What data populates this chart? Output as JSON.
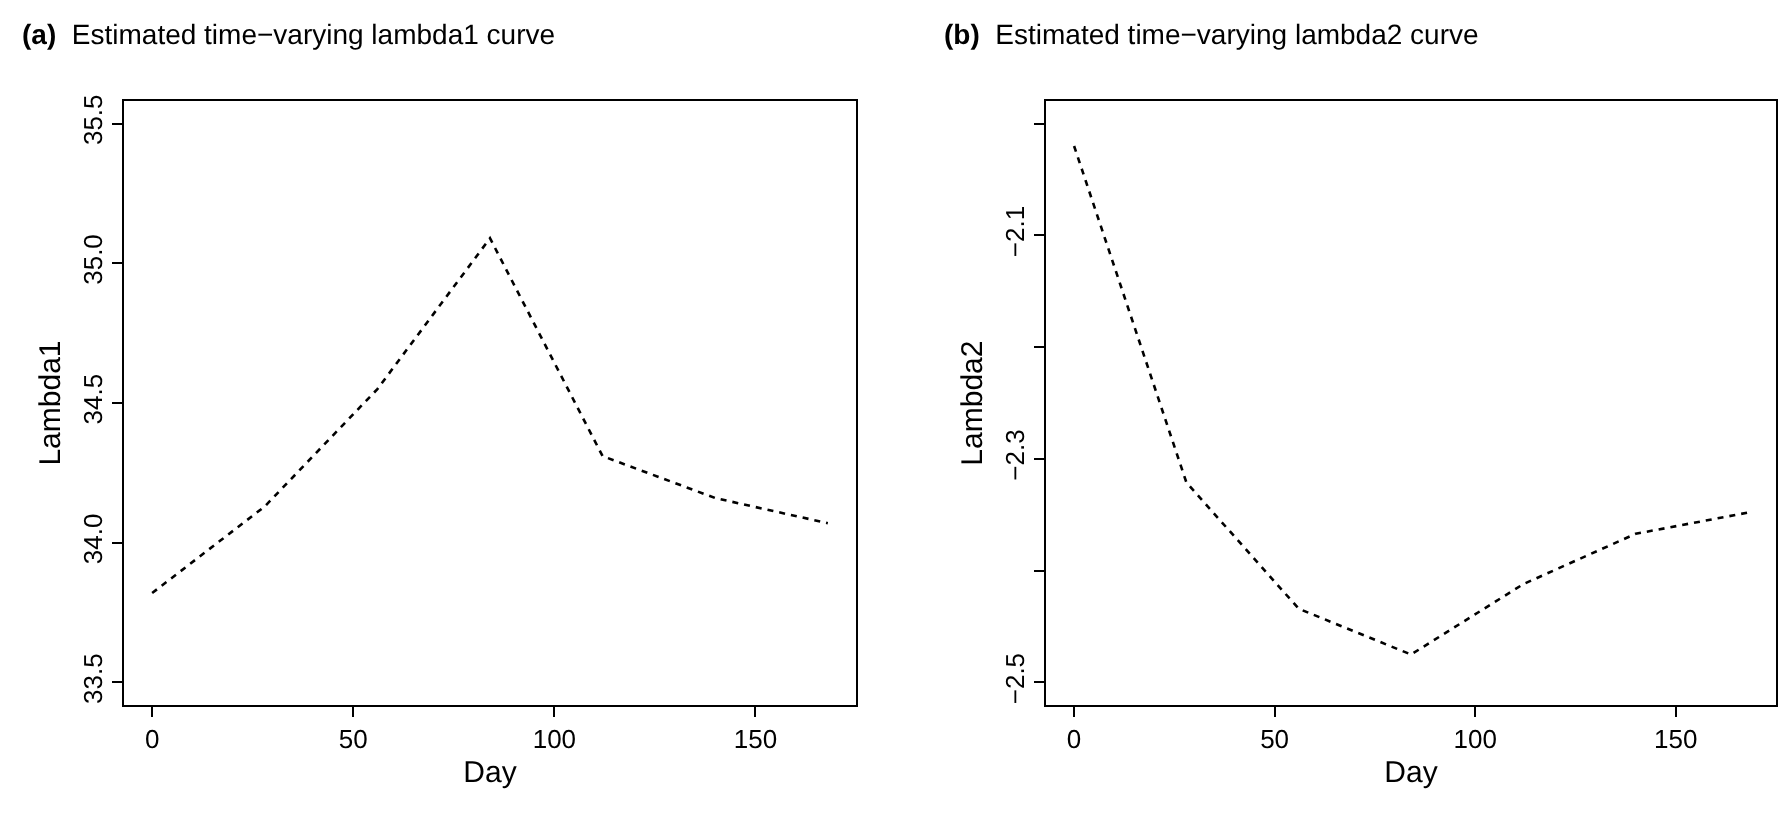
{
  "chart_data": [
    {
      "type": "line",
      "title": "(a) Estimated time−varying lambda1 curve",
      "xlabel": "Day",
      "ylabel": "Lambda1",
      "x": [
        0,
        28,
        56,
        84,
        112,
        140,
        168
      ],
      "series": [
        {
          "color": "#000000",
          "values": [
            33.82,
            34.13,
            34.55,
            35.09,
            34.31,
            34.16,
            34.07
          ]
        }
      ],
      "xlim": [
        -7,
        175
      ],
      "xticks": [
        0,
        50,
        100,
        150
      ],
      "ylim": [
        33.42,
        35.58
      ],
      "yticks": [
        {
          "value": 33.5,
          "label": "33.5"
        },
        {
          "value": 34.0,
          "label": "34.0"
        },
        {
          "value": 34.5,
          "label": "34.5"
        },
        {
          "value": 35.0,
          "label": "35.0"
        },
        {
          "value": 35.5,
          "label": "35.5"
        }
      ],
      "grid": false,
      "marker": "none",
      "line_style": "dashed"
    },
    {
      "type": "line",
      "title": "(b) Estimated time−varying lambda2 curve",
      "xlabel": "Day",
      "ylabel": "Lambda2",
      "x": [
        0,
        28,
        56,
        84,
        112,
        140,
        168
      ],
      "series": [
        {
          "color": "#000000",
          "values": [
            -2.02,
            -2.321,
            -2.434,
            -2.475,
            -2.412,
            -2.367,
            -2.348
          ]
        }
      ],
      "xlim": [
        -7,
        175
      ],
      "xticks": [
        0,
        50,
        100,
        150
      ],
      "ylim": [
        -2.52,
        -1.98
      ],
      "yticks": [
        {
          "value": -2.5,
          "label": "−2.5"
        },
        {
          "value": -2.4,
          "label": null
        },
        {
          "value": -2.3,
          "label": "−2.3"
        },
        {
          "value": -2.2,
          "label": null
        },
        {
          "value": -2.1,
          "label": "−2.1"
        },
        {
          "value": -2.0,
          "label": null
        }
      ],
      "grid": false,
      "marker": "none",
      "line_style": "dashed"
    }
  ]
}
